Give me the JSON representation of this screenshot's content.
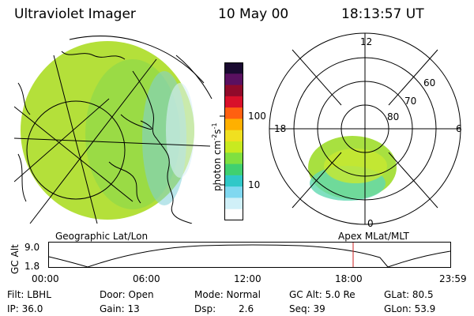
{
  "header": {
    "title": "Ultraviolet Imager",
    "date": "10 May 00",
    "time": "18:13:57 UT"
  },
  "colorbar": {
    "unit_label": "photon cm",
    "unit_exp1": "-2",
    "unit_s": "s",
    "unit_exp2": "-1",
    "tick_100": "100",
    "tick_10": "10",
    "colors": [
      "#1a0a30",
      "#5a1060",
      "#900a2a",
      "#d8102a",
      "#ff6010",
      "#ffb000",
      "#f0e020",
      "#c8ea20",
      "#80e040",
      "#40d070",
      "#30c8c8",
      "#80d8f0",
      "#d0f0f8",
      "#ffffff"
    ]
  },
  "geo_panel": {
    "label": "Geographic Lat/Lon",
    "fill_color": "#b4e03a"
  },
  "polar_panel": {
    "label": "Apex MLat/MLT",
    "mlt_12": "12",
    "mlt_18": "18",
    "mlt_6": "6",
    "mlt_0": "0",
    "lat_60": "60",
    "lat_70": "70",
    "lat_80": "80"
  },
  "altitude_plot": {
    "ylabel": "GC Alt",
    "y_top": "9.0",
    "y_bottom": "1.8",
    "x_ticks": [
      "00:00",
      "06:00",
      "12:00",
      "18:00",
      "23:59"
    ],
    "marker_time": "18:13:57",
    "marker_color": "#cc2020"
  },
  "info": {
    "filt": "Filt: LBHL",
    "ip": "IP: 36.0",
    "door": "Door: Open",
    "gain": "Gain: 13",
    "mode": "Mode: Normal",
    "dsp_label": "Dsp:",
    "dsp_value": "2.6",
    "gc_alt": "GC Alt: 5.0 Re",
    "seq": "Seq: 39",
    "glat": "GLat: 80.5",
    "glon": "GLon: 53.9"
  }
}
